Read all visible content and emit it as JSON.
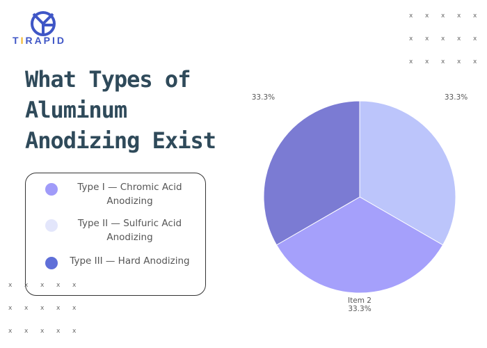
{
  "logo": {
    "text_pre": "T",
    "text_i": "I",
    "text_post": "RAPID"
  },
  "title": "What Types of Aluminum Anodizing Exist",
  "legend": [
    {
      "label": "Type I — Chromic Acid Anodizing",
      "color": "#a09bf9"
    },
    {
      "label": "Type II — Sulfuric Acid Anodizing",
      "color": "#e3e6fb"
    },
    {
      "label": "Type III — Hard Anodizing",
      "color": "#5f6fd8"
    }
  ],
  "chart_data": {
    "type": "pie",
    "slices": [
      {
        "name": "",
        "value": 33.3,
        "label": "33.3%",
        "color": "#bcc5fb"
      },
      {
        "name": "Item 2",
        "value": 33.3,
        "label": "33.3%",
        "color": "#a5a0fb"
      },
      {
        "name": "",
        "value": 33.3,
        "label": "33.3%",
        "color": "#7b7bd3"
      }
    ]
  },
  "decor": {
    "mark": "x"
  }
}
